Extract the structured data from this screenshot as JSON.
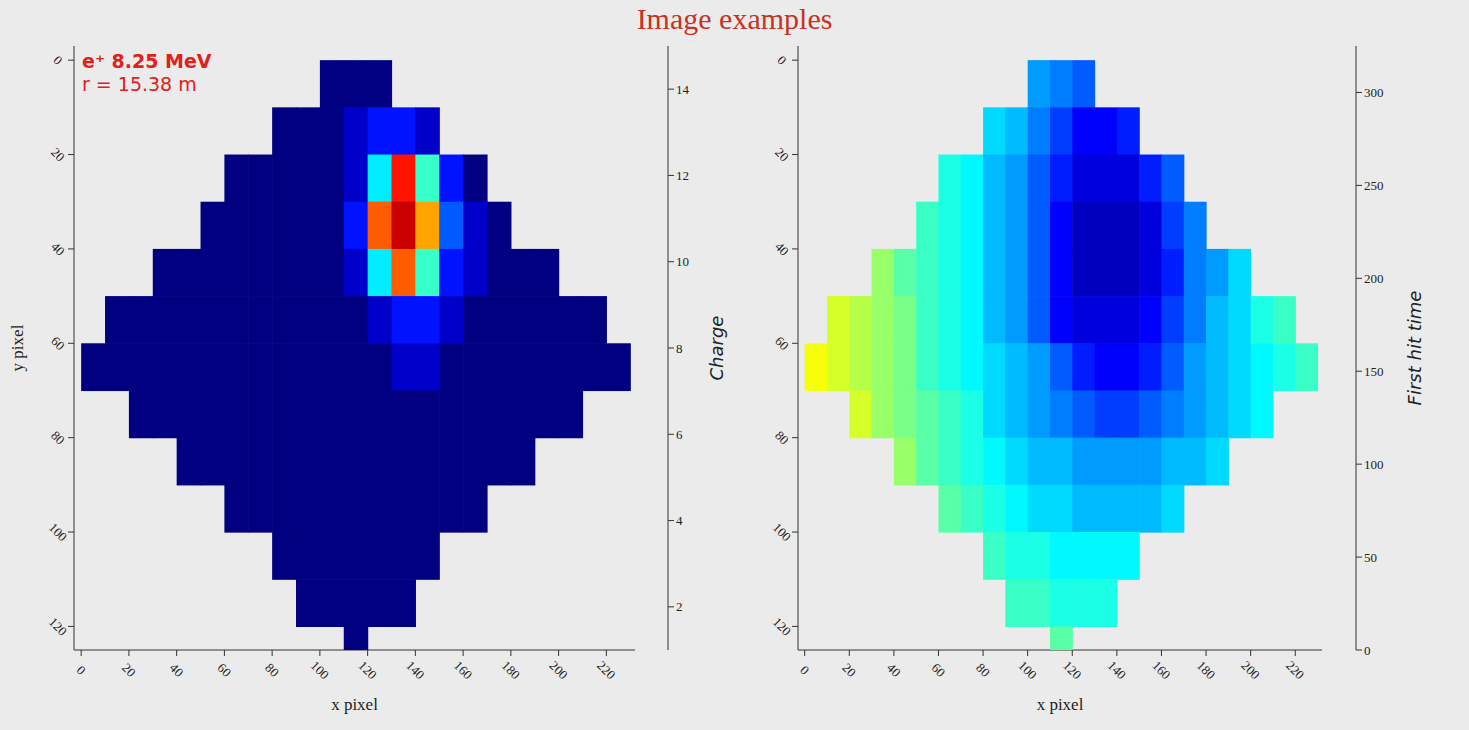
{
  "title": "Image examples",
  "chart_data": [
    {
      "type": "heatmap",
      "annotations": [
        "e⁺ 8.25 MeV",
        "r = 15.38 m"
      ],
      "x_label": "x pixel",
      "y_label": "y pixel",
      "x": [
        5,
        15,
        25,
        35,
        45,
        55,
        65,
        75,
        85,
        95,
        105,
        115,
        125,
        135,
        145,
        155,
        165,
        175,
        185,
        195,
        205,
        215,
        225
      ],
      "y": [
        5,
        15,
        25,
        35,
        45,
        55,
        65,
        75,
        85,
        95,
        105,
        115,
        125
      ],
      "values": [
        [
          null,
          null,
          null,
          null,
          null,
          null,
          null,
          null,
          null,
          null,
          1,
          1,
          1,
          null,
          null,
          null,
          null,
          null,
          null,
          null,
          null,
          null,
          null
        ],
        [
          null,
          null,
          null,
          null,
          null,
          null,
          null,
          null,
          1,
          1,
          1,
          2,
          3,
          3,
          2,
          null,
          null,
          null,
          null,
          null,
          null,
          null,
          null
        ],
        [
          null,
          null,
          null,
          null,
          null,
          null,
          1,
          1,
          1,
          1,
          1,
          2,
          6,
          13,
          7,
          3,
          1,
          null,
          null,
          null,
          null,
          null,
          null
        ],
        [
          null,
          null,
          null,
          null,
          null,
          1,
          1,
          1,
          1,
          1,
          1,
          3,
          12,
          14,
          11,
          4,
          2,
          1,
          null,
          null,
          null,
          null,
          null
        ],
        [
          null,
          null,
          null,
          1,
          1,
          1,
          1,
          1,
          1,
          1,
          1,
          2,
          6,
          12,
          7,
          3,
          2,
          1,
          1,
          1,
          null,
          null,
          null
        ],
        [
          null,
          1,
          1,
          1,
          1,
          1,
          1,
          1,
          1,
          1,
          1,
          1,
          2,
          3,
          3,
          2,
          1,
          1,
          1,
          1,
          1,
          1,
          null
        ],
        [
          1,
          1,
          1,
          1,
          1,
          1,
          1,
          1,
          1,
          1,
          1,
          1,
          1,
          2,
          2,
          1,
          1,
          1,
          1,
          1,
          1,
          1,
          1
        ],
        [
          null,
          null,
          1,
          1,
          1,
          1,
          1,
          1,
          1,
          1,
          1,
          1,
          1,
          1,
          1,
          1,
          1,
          1,
          1,
          1,
          1,
          null,
          null
        ],
        [
          null,
          null,
          null,
          null,
          1,
          1,
          1,
          1,
          1,
          1,
          1,
          1,
          1,
          1,
          1,
          1,
          1,
          1,
          1,
          null,
          null,
          null,
          null
        ],
        [
          null,
          null,
          null,
          null,
          null,
          null,
          1,
          1,
          1,
          1,
          1,
          1,
          1,
          1,
          1,
          1,
          1,
          null,
          null,
          null,
          null,
          null,
          null
        ],
        [
          null,
          null,
          null,
          null,
          null,
          null,
          null,
          null,
          1,
          1,
          1,
          1,
          1,
          1,
          1,
          null,
          null,
          null,
          null,
          null,
          null,
          null,
          null
        ],
        [
          null,
          null,
          null,
          null,
          null,
          null,
          null,
          null,
          null,
          1,
          1,
          1,
          1,
          1,
          null,
          null,
          null,
          null,
          null,
          null,
          null,
          null,
          null
        ],
        [
          null,
          null,
          null,
          null,
          null,
          null,
          null,
          null,
          null,
          null,
          null,
          1,
          null,
          null,
          null,
          null,
          null,
          null,
          null,
          null,
          null,
          null,
          null
        ]
      ],
      "xlim": [
        -3,
        232
      ],
      "ylim": [
        125,
        -3
      ],
      "xticks": [
        0,
        20,
        40,
        60,
        80,
        100,
        120,
        140,
        160,
        180,
        200,
        220
      ],
      "yticks": [
        0,
        20,
        40,
        60,
        80,
        100,
        120
      ],
      "colorbar": {
        "label": "Charge",
        "range": [
          1,
          15
        ],
        "ticks": [
          2,
          4,
          6,
          8,
          10,
          12,
          14
        ]
      }
    },
    {
      "type": "heatmap",
      "x_label": "x pixel",
      "x": [
        5,
        15,
        25,
        35,
        45,
        55,
        65,
        75,
        85,
        95,
        105,
        115,
        125,
        135,
        145,
        155,
        165,
        175,
        185,
        195,
        205,
        215,
        225
      ],
      "y": [
        5,
        15,
        25,
        35,
        45,
        55,
        65,
        75,
        85,
        95,
        105,
        115,
        125
      ],
      "values": [
        [
          null,
          null,
          null,
          null,
          null,
          null,
          null,
          null,
          null,
          null,
          90,
          80,
          70,
          null,
          null,
          null,
          null,
          null,
          null,
          null,
          null,
          null,
          null
        ],
        [
          null,
          null,
          null,
          null,
          null,
          null,
          null,
          null,
          110,
          100,
          80,
          60,
          40,
          40,
          50,
          null,
          null,
          null,
          null,
          null,
          null,
          null,
          null
        ],
        [
          null,
          null,
          null,
          null,
          null,
          null,
          130,
          120,
          100,
          90,
          70,
          50,
          30,
          30,
          30,
          50,
          70,
          null,
          null,
          null,
          null,
          null,
          null
        ],
        [
          null,
          null,
          null,
          null,
          null,
          140,
          130,
          120,
          100,
          90,
          70,
          40,
          20,
          20,
          20,
          30,
          60,
          80,
          null,
          null,
          null,
          null,
          null
        ],
        [
          null,
          null,
          null,
          170,
          150,
          140,
          130,
          120,
          100,
          90,
          70,
          40,
          20,
          20,
          20,
          30,
          50,
          80,
          90,
          110,
          null,
          null,
          null
        ],
        [
          null,
          190,
          180,
          170,
          160,
          140,
          130,
          120,
          100,
          90,
          70,
          40,
          30,
          30,
          30,
          40,
          60,
          80,
          100,
          110,
          130,
          140,
          null
        ],
        [
          200,
          190,
          180,
          170,
          160,
          140,
          130,
          120,
          110,
          100,
          90,
          70,
          50,
          40,
          40,
          50,
          70,
          90,
          100,
          110,
          120,
          130,
          140
        ],
        [
          null,
          null,
          190,
          170,
          160,
          150,
          140,
          130,
          110,
          100,
          90,
          80,
          70,
          60,
          60,
          70,
          80,
          90,
          100,
          110,
          120,
          null,
          null
        ],
        [
          null,
          null,
          null,
          null,
          170,
          150,
          140,
          130,
          120,
          110,
          100,
          100,
          90,
          90,
          90,
          90,
          100,
          100,
          110,
          null,
          null,
          null,
          null
        ],
        [
          null,
          null,
          null,
          null,
          null,
          null,
          150,
          140,
          130,
          120,
          110,
          110,
          100,
          100,
          100,
          100,
          110,
          null,
          null,
          null,
          null,
          null,
          null
        ],
        [
          null,
          null,
          null,
          null,
          null,
          null,
          null,
          null,
          140,
          130,
          130,
          120,
          120,
          120,
          120,
          null,
          null,
          null,
          null,
          null,
          null,
          null,
          null
        ],
        [
          null,
          null,
          null,
          null,
          null,
          null,
          null,
          null,
          null,
          140,
          140,
          130,
          130,
          130,
          null,
          null,
          null,
          null,
          null,
          null,
          null,
          null,
          null
        ],
        [
          null,
          null,
          null,
          null,
          null,
          null,
          null,
          null,
          null,
          null,
          null,
          150,
          null,
          null,
          null,
          null,
          null,
          null,
          null,
          null,
          null,
          null,
          null
        ]
      ],
      "xlim": [
        -3,
        232
      ],
      "ylim": [
        125,
        -3
      ],
      "xticks": [
        0,
        20,
        40,
        60,
        80,
        100,
        120,
        140,
        160,
        180,
        200,
        220
      ],
      "yticks": [
        0,
        20,
        40,
        60,
        80,
        100,
        120
      ],
      "colorbar": {
        "label": "First hit time",
        "range": [
          0,
          325
        ],
        "ticks": [
          0,
          50,
          100,
          150,
          200,
          250,
          300
        ]
      }
    }
  ]
}
